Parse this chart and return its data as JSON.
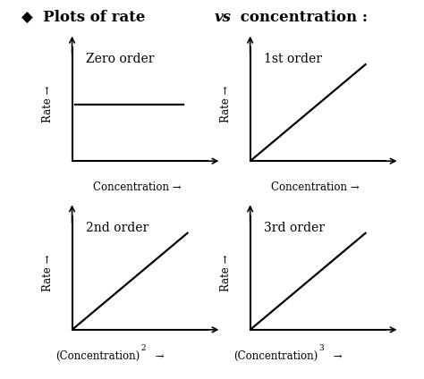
{
  "title_prefix": "◆  Plots of rate ",
  "title_vs": "vs",
  "title_suffix": " concentration :",
  "bg_color": "#ffffff",
  "subplot_titles": [
    "Zero order",
    "1st order",
    "2nd order",
    "3rd order"
  ],
  "xlabels_plain": [
    "Concentration",
    "Concentration",
    "(Concentration)",
    "(Concentration)"
  ],
  "xlabels_super": [
    "",
    "",
    "2",
    "3"
  ],
  "ylabel_text": "Rate",
  "line_color": "#000000",
  "axis_color": "#000000",
  "title_fontsize": 12,
  "subplot_title_fontsize": 10,
  "label_fontsize": 8.5,
  "axis_label_fontsize": 8.5
}
